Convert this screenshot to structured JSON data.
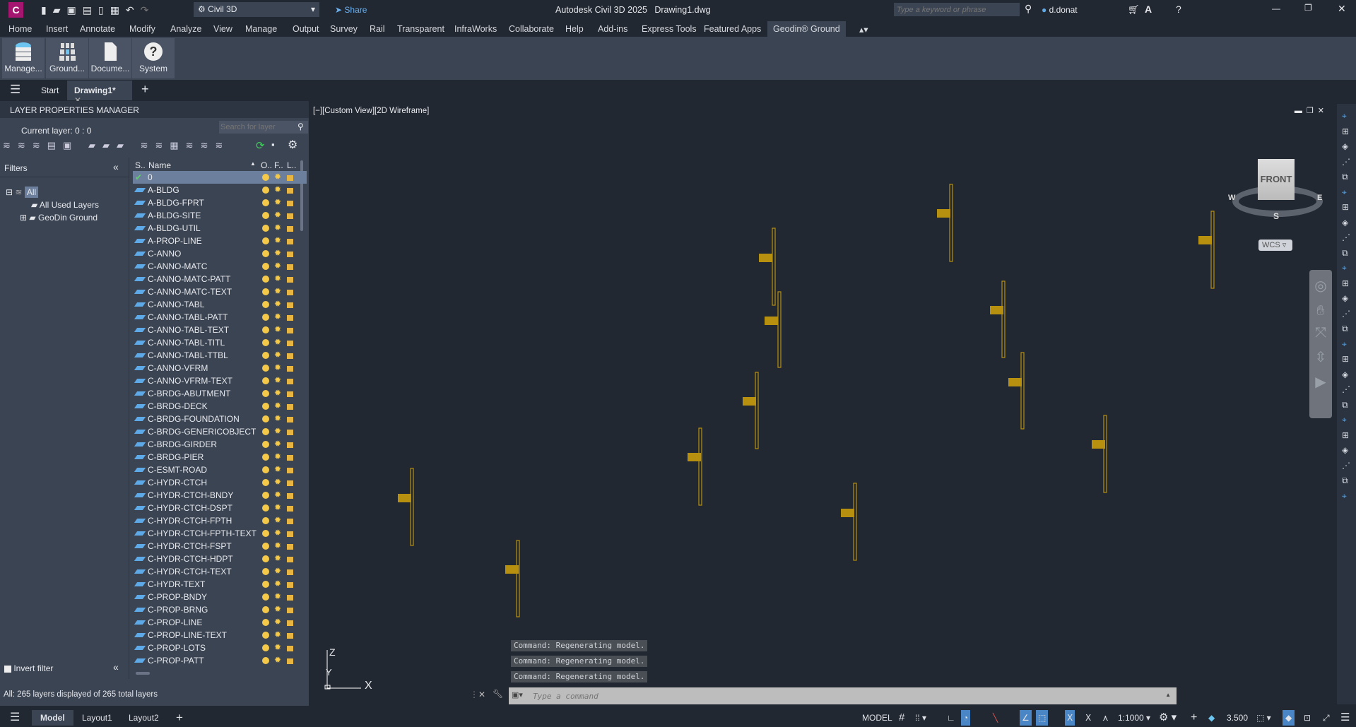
{
  "app": {
    "title": "Autodesk Civil 3D 2025",
    "file": "Drawing1.dwg",
    "workspace": "Civil 3D",
    "share": "Share",
    "search_placeholder": "Type a keyword or phrase",
    "user": "d.donat",
    "brand_color": "#a4166f"
  },
  "menu": [
    "Home",
    "Insert",
    "Annotate",
    "Modify",
    "Analyze",
    "View",
    "Manage",
    "Output",
    "Survey",
    "Rail",
    "Transparent",
    "InfraWorks",
    "Collaborate",
    "Help",
    "Add-ins",
    "Express Tools",
    "Featured Apps",
    "Geodin® Ground"
  ],
  "ribbon": [
    "Manage...",
    "Ground...",
    "Docume...",
    "System"
  ],
  "doc_tabs": {
    "start": "Start",
    "active": "Drawing1*"
  },
  "layer_panel": {
    "title": "LAYER PROPERTIES MANAGER",
    "current_layer": "Current layer: 0 : 0",
    "search_placeholder": "Search for layer",
    "filters_label": "Filters",
    "filters": [
      "All",
      "All Used Layers",
      "GeoDin Ground"
    ],
    "columns": [
      "S..",
      "Name",
      "O..",
      "F..",
      "L.."
    ],
    "invert_filter": "Invert filter",
    "status": "All: 265 layers displayed of 265 total layers",
    "layers": [
      "0",
      "A-BLDG",
      "A-BLDG-FPRT",
      "A-BLDG-SITE",
      "A-BLDG-UTIL",
      "A-PROP-LINE",
      "C-ANNO",
      "C-ANNO-MATC",
      "C-ANNO-MATC-PATT",
      "C-ANNO-MATC-TEXT",
      "C-ANNO-TABL",
      "C-ANNO-TABL-PATT",
      "C-ANNO-TABL-TEXT",
      "C-ANNO-TABL-TITL",
      "C-ANNO-TABL-TTBL",
      "C-ANNO-VFRM",
      "C-ANNO-VFRM-TEXT",
      "C-BRDG-ABUTMENT",
      "C-BRDG-DECK",
      "C-BRDG-FOUNDATION",
      "C-BRDG-GENERICOBJECT",
      "C-BRDG-GIRDER",
      "C-BRDG-PIER",
      "C-ESMT-ROAD",
      "C-HYDR-CTCH",
      "C-HYDR-CTCH-BNDY",
      "C-HYDR-CTCH-DSPT",
      "C-HYDR-CTCH-FPTH",
      "C-HYDR-CTCH-FPTH-TEXT",
      "C-HYDR-CTCH-FSPT",
      "C-HYDR-CTCH-HDPT",
      "C-HYDR-CTCH-TEXT",
      "C-HYDR-TEXT",
      "C-PROP-BNDY",
      "C-PROP-BRNG",
      "C-PROP-LINE",
      "C-PROP-LINE-TEXT",
      "C-PROP-LOTS",
      "C-PROP-PATT"
    ]
  },
  "viewport": {
    "label": "[−][Custom View][2D Wireframe]",
    "viewcube_face": "FRONT",
    "compass": [
      "W",
      "E",
      "S"
    ],
    "ucs": "WCS",
    "axis_x": "X",
    "axis_y": "Y",
    "axis_z": "Z",
    "object_color": "#b8900f"
  },
  "command": {
    "history": [
      "Command:  Regenerating model.",
      "Command:  Regenerating model.",
      "Command:  Regenerating model."
    ],
    "placeholder": "Type a command"
  },
  "layout_tabs": [
    "Model",
    "Layout1",
    "Layout2"
  ],
  "statusbar": {
    "model": "MODEL",
    "scale": "1:1000",
    "annotation_value": "3.500"
  }
}
